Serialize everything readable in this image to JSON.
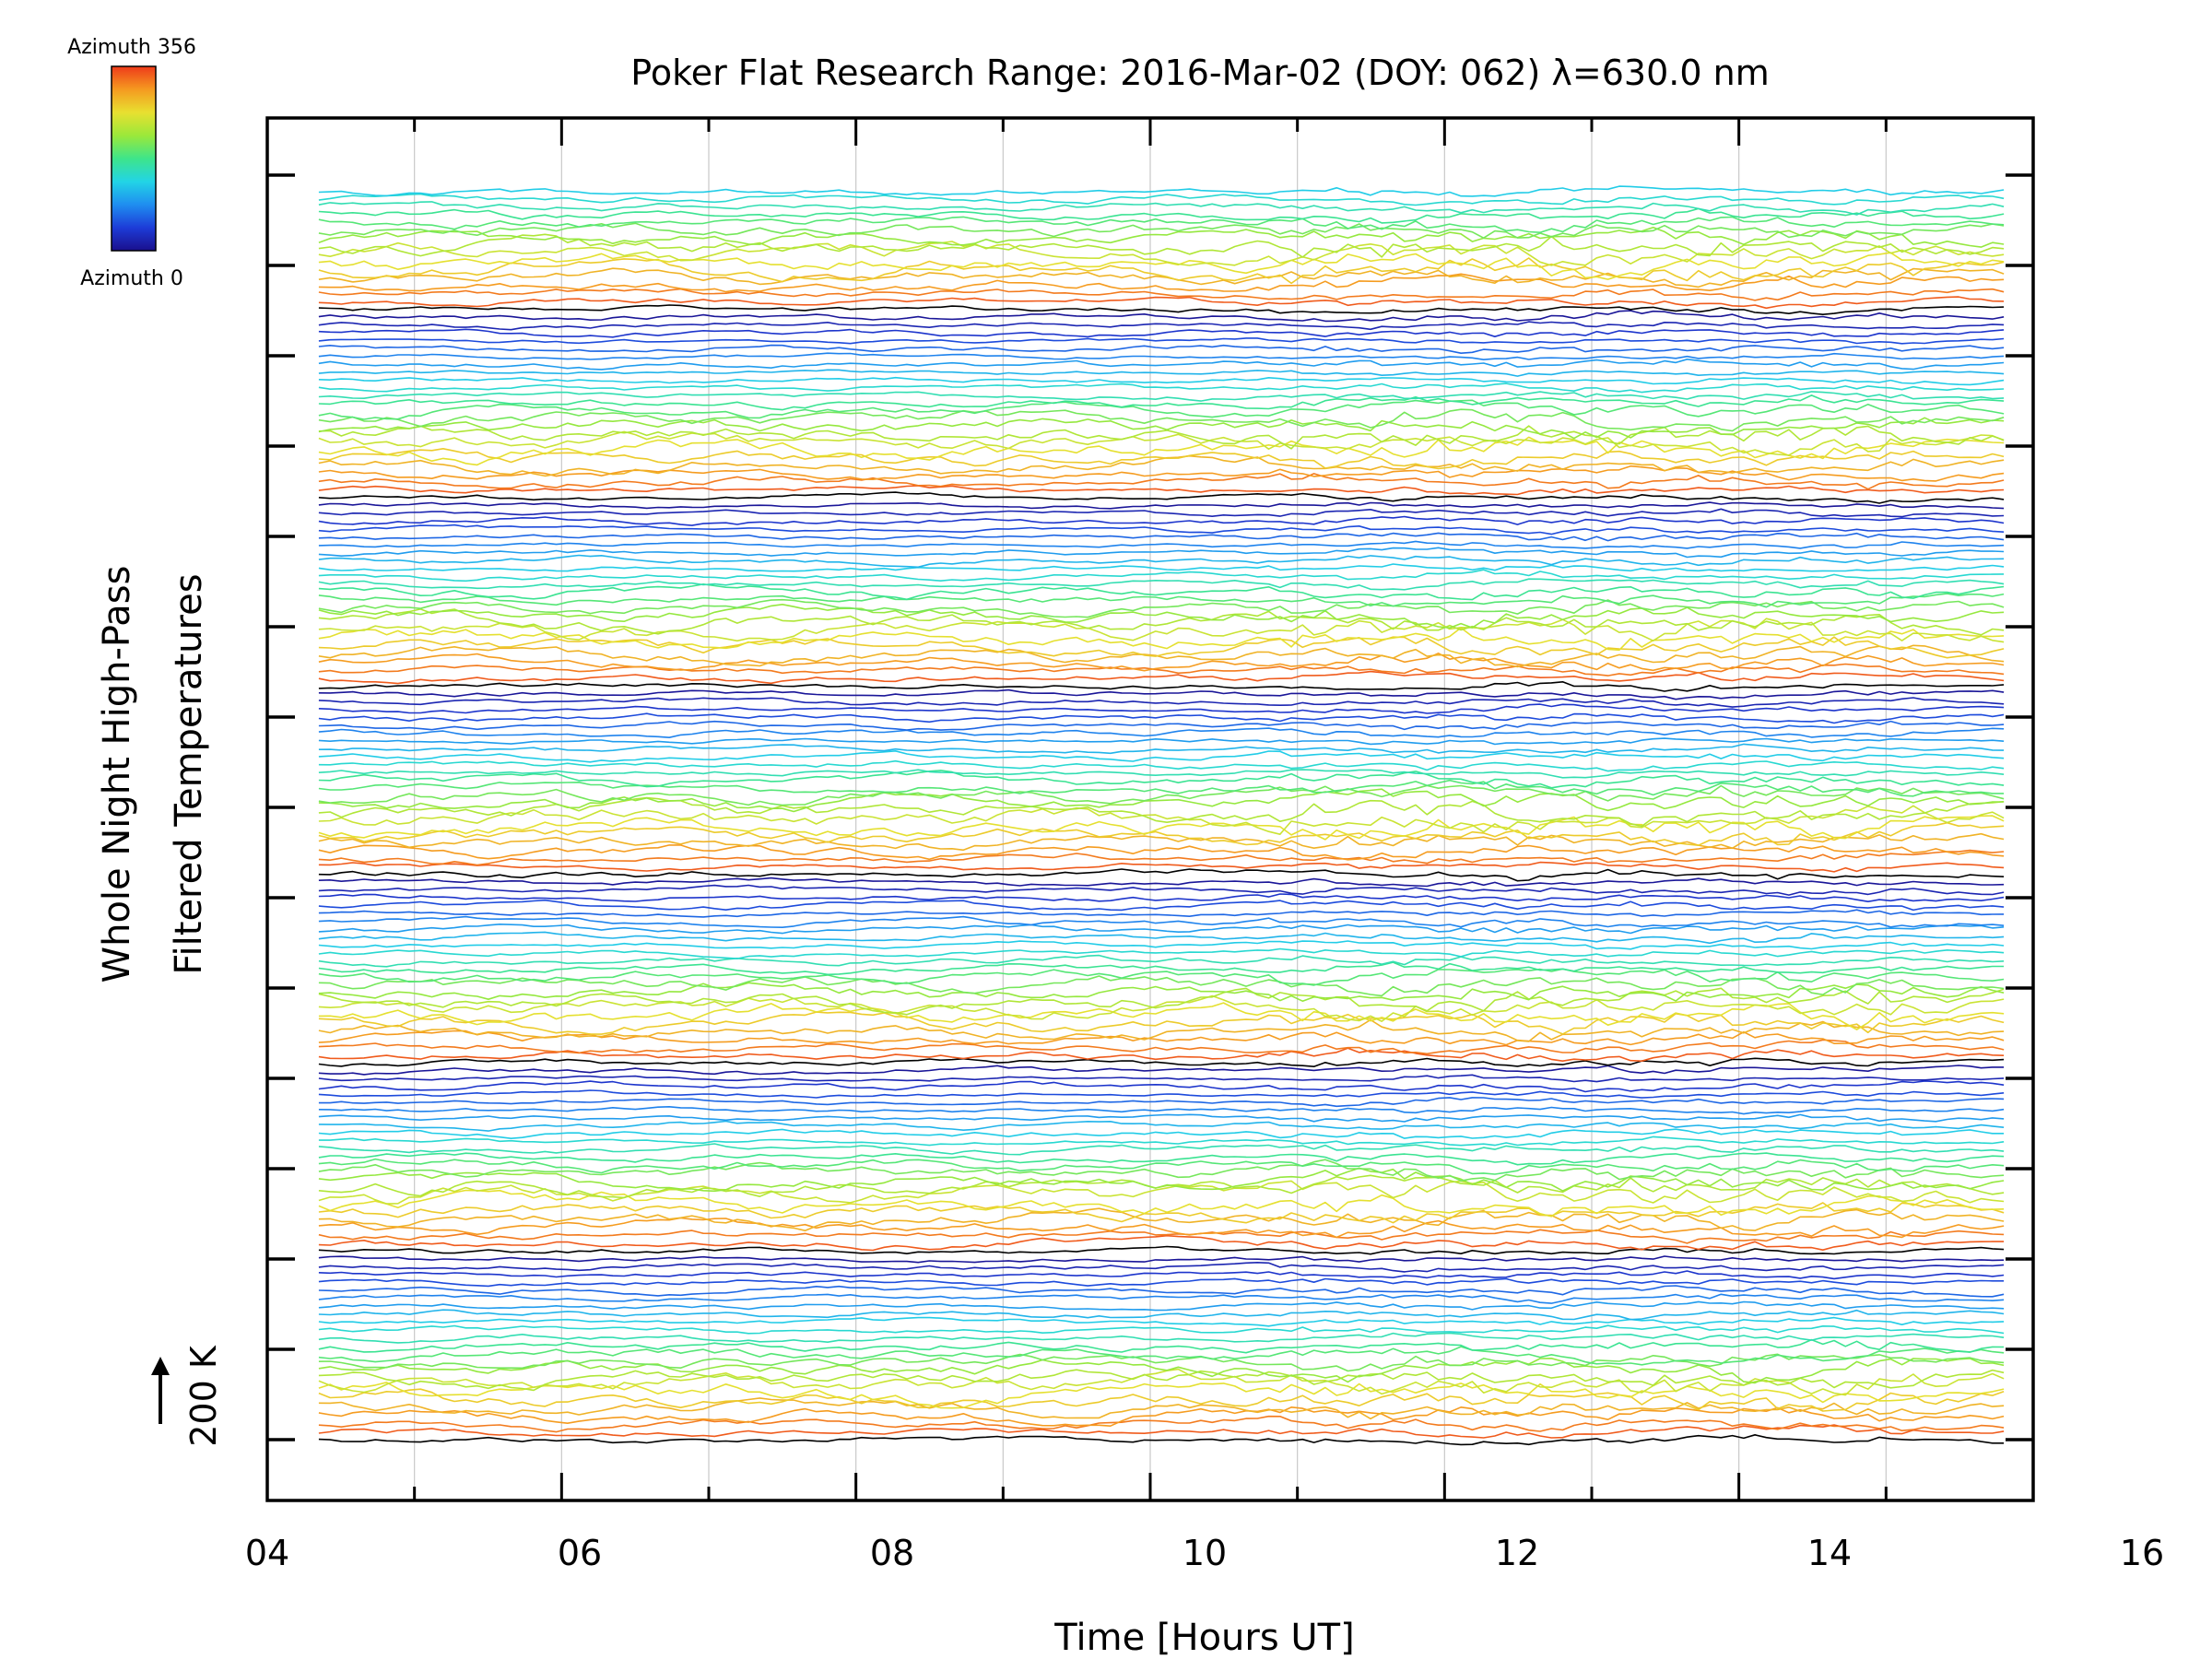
{
  "chart_data": {
    "type": "line",
    "title": "Poker Flat Research Range: 2016-Mar-02 (DOY: 062) λ=630.0 nm",
    "xlabel": "Time [Hours UT]",
    "ylabel_line1": "Whole Night High-Pass",
    "ylabel_line2": "Filtered Temperatures",
    "xlim": [
      4,
      16
    ],
    "x_ticks": [
      "04",
      "06",
      "08",
      "10",
      "12",
      "14",
      "16"
    ],
    "x_minor_step": 1,
    "grid_vertical": true,
    "time_start": 4.35,
    "time_end": 15.8,
    "samples": 150,
    "stacked_traces": 160,
    "colorbar": {
      "top_label": "Azimuth 356",
      "bottom_label": "Azimuth 0",
      "colormap": [
        "#1a0f8c",
        "#1d3cd8",
        "#1f8ef0",
        "#22d4e6",
        "#3ee58a",
        "#9be83a",
        "#e8e030",
        "#f59a20",
        "#ee3a1a"
      ],
      "legend_placement": "top-left"
    },
    "scale_bar": {
      "label": "200 K",
      "arrow": "up"
    },
    "colors": {
      "axis": "#000000",
      "grid": "#c8c8c8",
      "low_trace": "#000000"
    }
  }
}
